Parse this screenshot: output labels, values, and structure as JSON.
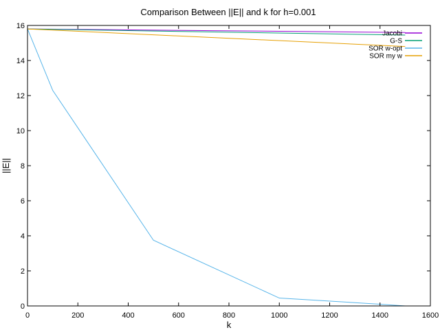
{
  "chart_data": {
    "type": "line",
    "title": "Comparison Between ||E|| and k for h=0.001",
    "xlabel": "k",
    "ylabel": "||E||",
    "xlim": [
      0,
      1600
    ],
    "ylim": [
      0,
      16
    ],
    "xticks": [
      "0",
      "200",
      "400",
      "600",
      "800",
      "1000",
      "1200",
      "1400",
      "1600"
    ],
    "yticks": [
      "0",
      "2",
      "4",
      "6",
      "8",
      "10",
      "12",
      "14",
      "16"
    ],
    "grid": false,
    "legend_position": "top-right",
    "series": [
      {
        "name": "Jacobi",
        "color": "#9400d3",
        "x": [
          0,
          1500
        ],
        "y": [
          15.8,
          15.6
        ]
      },
      {
        "name": "G-S",
        "color": "#009e73",
        "x": [
          0,
          1500
        ],
        "y": [
          15.8,
          15.45
        ]
      },
      {
        "name": "SOR w-opt",
        "color": "#56b4e9",
        "x": [
          0,
          100,
          500,
          1000,
          1400,
          1500
        ],
        "y": [
          15.8,
          12.3,
          3.75,
          0.45,
          0.1,
          0
        ]
      },
      {
        "name": "SOR my w",
        "color": "#e69f00",
        "x": [
          0,
          1500
        ],
        "y": [
          15.8,
          14.8
        ]
      }
    ]
  }
}
